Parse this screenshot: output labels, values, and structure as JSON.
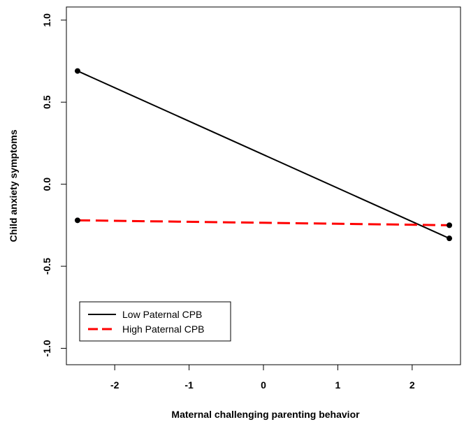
{
  "chart_data": {
    "type": "line",
    "title": "",
    "xlabel": "Maternal challenging parenting behavior",
    "ylabel": "Child anxiety symptoms",
    "xlim": [
      -2.65,
      2.65
    ],
    "ylim": [
      -1.1,
      1.08
    ],
    "x_ticks": [
      -2,
      -1,
      0,
      1,
      2
    ],
    "x_tick_labels": [
      "-2",
      "-1",
      "0",
      "1",
      "2"
    ],
    "y_ticks": [
      -1.0,
      -0.5,
      0.0,
      0.5,
      1.0
    ],
    "y_tick_labels": [
      "-1.0",
      "-0.5",
      "0.0",
      "0.5",
      "1.0"
    ],
    "grid": false,
    "legend_position": "bottom-left",
    "series": [
      {
        "name": "Low Paternal CPB",
        "color": "#000000",
        "line_style": "solid",
        "x": [
          -2.5,
          2.5
        ],
        "y": [
          0.69,
          -0.33
        ]
      },
      {
        "name": "High Paternal CPB",
        "color": "#ff0000",
        "line_style": "dashed",
        "x": [
          -2.5,
          2.5
        ],
        "y": [
          -0.22,
          -0.25
        ]
      }
    ]
  }
}
